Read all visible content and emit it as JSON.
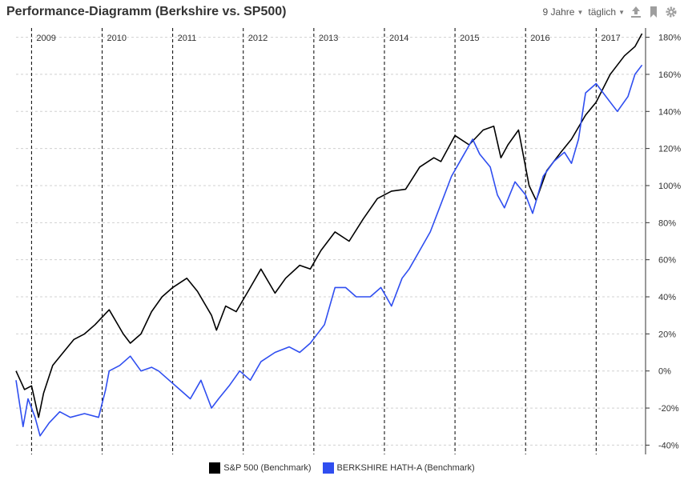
{
  "title": "Performance-Diagramm (Berkshire vs. SP500)",
  "controls": {
    "range_label": "9 Jahre",
    "interval_label": "täglich",
    "icons": [
      "download-icon",
      "bookmark-icon",
      "gear-icon"
    ],
    "icon_color": "#9e9e9e"
  },
  "chart_data": {
    "type": "line",
    "title": "Performance-Diagramm (Berkshire vs. SP500)",
    "x_labels": [
      "2009",
      "2010",
      "2011",
      "2012",
      "2013",
      "2014",
      "2015",
      "2016",
      "2017"
    ],
    "xlim": [
      2008.78,
      2017.7
    ],
    "y_ticks": [
      -40,
      -20,
      0,
      20,
      40,
      60,
      80,
      100,
      120,
      140,
      160,
      180
    ],
    "y_tick_labels": [
      "-40%",
      "-20%",
      "0%",
      "20%",
      "40%",
      "60%",
      "80%",
      "100%",
      "120%",
      "140%",
      "160%",
      "180%"
    ],
    "ylim": [
      -45,
      185
    ],
    "grid": true,
    "series": [
      {
        "name": "S&P 500  (Benchmark)",
        "color": "#000000",
        "x": [
          2008.78,
          2008.9,
          2009.0,
          2009.1,
          2009.17,
          2009.3,
          2009.45,
          2009.6,
          2009.75,
          2009.9,
          2010.1,
          2010.3,
          2010.4,
          2010.55,
          2010.7,
          2010.85,
          2011.0,
          2011.2,
          2011.35,
          2011.55,
          2011.62,
          2011.75,
          2011.9,
          2012.1,
          2012.25,
          2012.45,
          2012.6,
          2012.8,
          2012.95,
          2013.1,
          2013.3,
          2013.5,
          2013.7,
          2013.9,
          2014.1,
          2014.3,
          2014.5,
          2014.7,
          2014.8,
          2015.0,
          2015.2,
          2015.4,
          2015.55,
          2015.65,
          2015.75,
          2015.9,
          2016.05,
          2016.15,
          2016.3,
          2016.5,
          2016.65,
          2016.85,
          2017.0,
          2017.2,
          2017.4,
          2017.55,
          2017.65
        ],
        "values": [
          0,
          -10,
          -8,
          -25,
          -12,
          3,
          10,
          17,
          20,
          25,
          33,
          20,
          15,
          20,
          32,
          40,
          45,
          50,
          43,
          30,
          22,
          35,
          32,
          45,
          55,
          42,
          50,
          57,
          55,
          65,
          75,
          70,
          82,
          93,
          97,
          98,
          110,
          115,
          113,
          127,
          122,
          130,
          132,
          115,
          122,
          130,
          100,
          92,
          108,
          118,
          125,
          138,
          145,
          160,
          170,
          175,
          182
        ]
      },
      {
        "name": "BERKSHIRE HATH-A (Benchmark)",
        "color": "#2f4ef0",
        "x": [
          2008.78,
          2008.88,
          2008.95,
          2009.05,
          2009.12,
          2009.25,
          2009.4,
          2009.55,
          2009.75,
          2009.95,
          2010.05,
          2010.1,
          2010.25,
          2010.4,
          2010.55,
          2010.7,
          2010.8,
          2010.95,
          2011.1,
          2011.25,
          2011.4,
          2011.55,
          2011.65,
          2011.8,
          2011.95,
          2012.1,
          2012.25,
          2012.45,
          2012.65,
          2012.8,
          2012.95,
          2013.15,
          2013.3,
          2013.45,
          2013.6,
          2013.8,
          2013.95,
          2014.1,
          2014.25,
          2014.35,
          2014.5,
          2014.65,
          2014.8,
          2014.95,
          2015.1,
          2015.25,
          2015.35,
          2015.5,
          2015.6,
          2015.7,
          2015.85,
          2016.0,
          2016.1,
          2016.25,
          2016.4,
          2016.55,
          2016.65,
          2016.75,
          2016.85,
          2017.0,
          2017.2,
          2017.3,
          2017.45,
          2017.55,
          2017.65
        ],
        "values": [
          -5,
          -30,
          -15,
          -25,
          -35,
          -28,
          -22,
          -25,
          -23,
          -25,
          -10,
          0,
          3,
          8,
          0,
          2,
          0,
          -5,
          -10,
          -15,
          -5,
          -20,
          -15,
          -8,
          0,
          -5,
          5,
          10,
          13,
          10,
          15,
          25,
          45,
          45,
          40,
          40,
          45,
          35,
          50,
          55,
          65,
          75,
          90,
          105,
          115,
          125,
          117,
          110,
          95,
          88,
          102,
          95,
          85,
          105,
          113,
          118,
          112,
          125,
          150,
          155,
          145,
          140,
          148,
          160,
          165
        ]
      }
    ],
    "legend": "bottom-center",
    "legend_entries": [
      "S&P 500  (Benchmark)",
      "BERKSHIRE HATH-A (Benchmark)"
    ]
  }
}
